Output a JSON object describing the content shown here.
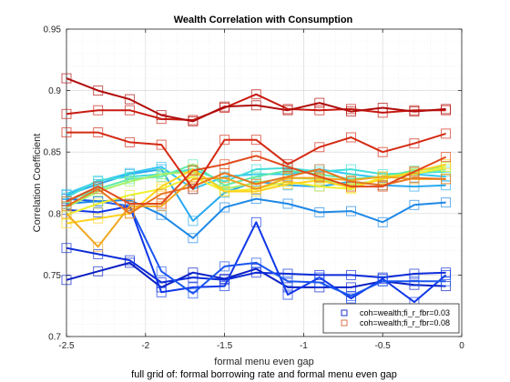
{
  "chart_data": {
    "type": "line",
    "title": "Wealth Correlation with Consumption",
    "xlabel": "formal menu even gap",
    "ylabel": "Correlation Coefficient",
    "caption": "full grid of: formal borrowing rate and formal menu even gap",
    "xlim": [
      -2.5,
      0
    ],
    "ylim": [
      0.7,
      0.95
    ],
    "x_ticks": [
      "-2.5",
      "-2",
      "-1.5",
      "-1",
      "-0.5",
      "0"
    ],
    "y_ticks": [
      "0.7",
      "0.75",
      "0.8",
      "0.85",
      "0.9",
      "0.95"
    ],
    "grid": true,
    "legend_position": "bottom-right",
    "x": [
      -2.5,
      -2.3,
      -2.1,
      -1.9,
      -1.7,
      -1.5,
      -1.3,
      -1.1,
      -0.9,
      -0.7,
      -0.5,
      -0.3,
      -0.1
    ],
    "series": [
      {
        "color": "#0a1fc4",
        "values": [
          0.746,
          0.753,
          0.76,
          0.74,
          0.752,
          0.747,
          0.755,
          0.74,
          0.74,
          0.74,
          0.745,
          0.742,
          0.741
        ],
        "marker_color": "#0a1fc4"
      },
      {
        "color": "#0c2bd8",
        "values": [
          0.772,
          0.767,
          0.762,
          0.744,
          0.748,
          0.746,
          0.752,
          0.751,
          0.75,
          0.75,
          0.748,
          0.751,
          0.752
        ],
        "marker_color": "#0c2bd8"
      },
      {
        "color": "#1037e8",
        "values": [
          0.803,
          0.801,
          0.806,
          0.736,
          0.74,
          0.741,
          0.793,
          0.734,
          0.748,
          0.731,
          0.747,
          0.728,
          0.75
        ],
        "marker_color": "#1037e8"
      },
      {
        "color": "#1a56f0",
        "values": [
          0.812,
          0.81,
          0.806,
          0.753,
          0.735,
          0.757,
          0.76,
          0.745,
          0.744,
          0.733,
          0.745,
          0.745,
          0.745
        ],
        "marker_color": "#1a56f0"
      },
      {
        "color": "#1e88e6",
        "values": [
          0.808,
          0.81,
          0.811,
          0.799,
          0.78,
          0.805,
          0.812,
          0.808,
          0.801,
          0.802,
          0.793,
          0.807,
          0.809
        ],
        "marker_color": "#1e88e6"
      },
      {
        "color": "#29a8f0",
        "values": [
          0.815,
          0.824,
          0.832,
          0.836,
          0.794,
          0.817,
          0.826,
          0.823,
          0.822,
          0.826,
          0.823,
          0.822,
          0.823
        ],
        "marker_color": "#29a8f0"
      },
      {
        "color": "#33c6f2",
        "values": [
          0.816,
          0.826,
          0.833,
          0.838,
          0.82,
          0.83,
          0.832,
          0.832,
          0.836,
          0.832,
          0.829,
          0.832,
          0.83
        ],
        "marker_color": "#33c6f2"
      },
      {
        "color": "#44ddd8",
        "values": [
          0.813,
          0.827,
          0.83,
          0.832,
          0.836,
          0.826,
          0.836,
          0.837,
          0.834,
          0.836,
          0.832,
          0.833,
          0.834
        ],
        "marker_color": "#44ddd8"
      },
      {
        "color": "#5eeaa8",
        "values": [
          0.81,
          0.82,
          0.828,
          0.83,
          0.84,
          0.823,
          0.83,
          0.835,
          0.832,
          0.828,
          0.83,
          0.835,
          0.838
        ],
        "marker_color": "#5eeaa8"
      },
      {
        "color": "#a6f06a",
        "values": [
          0.805,
          0.818,
          0.826,
          0.832,
          0.834,
          0.82,
          0.825,
          0.829,
          0.828,
          0.823,
          0.828,
          0.833,
          0.836
        ],
        "marker_color": "#a6f06a"
      },
      {
        "color": "#f0f030",
        "values": [
          0.799,
          0.808,
          0.815,
          0.82,
          0.83,
          0.818,
          0.82,
          0.826,
          0.822,
          0.82,
          0.83,
          0.832,
          0.838
        ],
        "marker_color": "#f0f030"
      },
      {
        "color": "#ffd21e",
        "values": [
          0.792,
          0.796,
          0.8,
          0.822,
          0.836,
          0.818,
          0.818,
          0.824,
          0.827,
          0.821,
          0.828,
          0.834,
          0.84
        ],
        "marker_color": "#ffd21e"
      },
      {
        "color": "#f0a81e",
        "values": [
          0.8,
          0.773,
          0.806,
          0.806,
          0.828,
          0.829,
          0.82,
          0.829,
          0.829,
          0.827,
          0.83,
          0.828,
          0.828
        ],
        "marker_color": "#f0a81e"
      },
      {
        "color": "#e87420",
        "values": [
          0.806,
          0.82,
          0.8,
          0.816,
          0.822,
          0.833,
          0.824,
          0.83,
          0.836,
          0.826,
          0.823,
          0.829,
          0.828
        ],
        "marker_color": "#e87420"
      },
      {
        "color": "#e04a1c",
        "values": [
          0.81,
          0.822,
          0.808,
          0.808,
          0.835,
          0.84,
          0.847,
          0.838,
          0.83,
          0.822,
          0.822,
          0.834,
          0.846
        ],
        "marker_color": "#e04a1c"
      },
      {
        "color": "#d42a14",
        "values": [
          0.866,
          0.866,
          0.858,
          0.856,
          0.82,
          0.86,
          0.86,
          0.84,
          0.854,
          0.862,
          0.85,
          0.857,
          0.865
        ],
        "marker_color": "#d42a14"
      },
      {
        "color": "#c81a10",
        "values": [
          0.881,
          0.884,
          0.884,
          0.877,
          0.876,
          0.886,
          0.897,
          0.885,
          0.884,
          0.885,
          0.882,
          0.884,
          0.884
        ],
        "marker_color": "#c81a10"
      },
      {
        "color": "#b00c0c",
        "values": [
          0.91,
          0.9,
          0.893,
          0.88,
          0.875,
          0.887,
          0.888,
          0.884,
          0.89,
          0.883,
          0.886,
          0.883,
          0.885
        ],
        "marker_color": "#b00c0c"
      }
    ],
    "legend": [
      {
        "label": "coh=wealth;fi_r_fbr=0.03",
        "color": "#0a1fc4"
      },
      {
        "label": "coh=wealth;fi_r_fbr=0.08",
        "color": "#d46a3c"
      }
    ]
  }
}
